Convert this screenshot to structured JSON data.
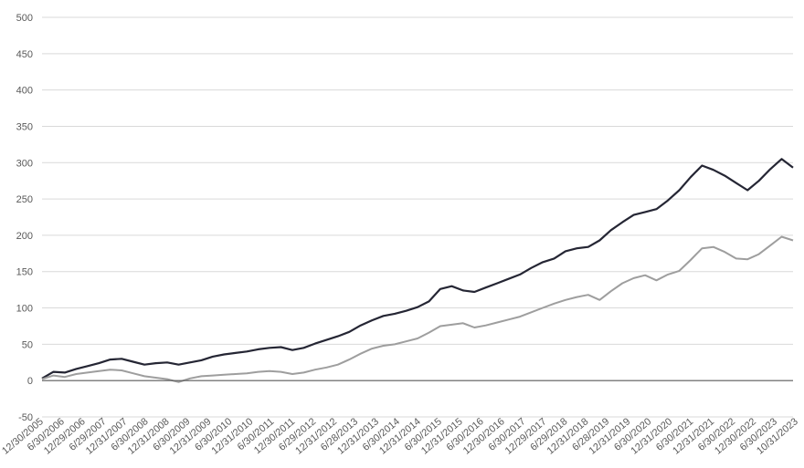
{
  "chart_data": {
    "type": "line",
    "title": "",
    "xlabel": "",
    "ylabel": "",
    "ylim": [
      -50,
      500
    ],
    "yticks": [
      "-50",
      "0",
      "50",
      "100",
      "150",
      "200",
      "250",
      "300",
      "350",
      "400",
      "450",
      "500"
    ],
    "grid": true,
    "legend": "none",
    "x_tick_labels": [
      "12/30/2005",
      "6/30/2006",
      "12/29/2006",
      "6/29/2007",
      "12/31/2007",
      "6/30/2008",
      "12/31/2008",
      "6/30/2009",
      "12/31/2009",
      "6/30/2010",
      "12/31/2010",
      "6/30/2011",
      "12/30/2011",
      "6/29/2012",
      "12/31/2012",
      "6/28/2013",
      "12/31/2013",
      "6/30/2014",
      "12/31/2014",
      "6/30/2015",
      "12/31/2015",
      "6/30/2016",
      "12/30/2016",
      "6/30/2017",
      "12/29/2017",
      "6/29/2018",
      "12/31/2018",
      "6/28/2019",
      "12/31/2019",
      "6/30/2020",
      "12/31/2020",
      "6/30/2021",
      "12/31/2021",
      "6/30/2022",
      "12/30/2022",
      "6/30/2023",
      "10/31/2023"
    ],
    "series": [
      {
        "color": "#252634",
        "values": [
          3,
          12,
          11,
          16,
          20,
          24,
          29,
          30,
          26,
          22,
          24,
          25,
          22,
          25,
          28,
          33,
          36,
          38,
          40,
          43,
          45,
          46,
          42,
          45,
          51,
          56,
          61,
          67,
          76,
          83,
          89,
          92,
          96,
          101,
          109,
          126,
          130,
          124,
          122,
          128,
          134,
          140,
          146,
          155,
          163,
          168,
          178,
          182,
          184,
          193,
          207,
          218,
          228,
          232,
          236,
          248,
          262,
          280,
          296,
          290,
          282,
          272,
          262,
          275,
          291,
          305,
          293
        ]
      },
      {
        "color": "#9e9e9e",
        "values": [
          2,
          7,
          5,
          9,
          11,
          13,
          15,
          14,
          10,
          6,
          4,
          2,
          -2,
          3,
          6,
          7,
          8,
          9,
          10,
          12,
          13,
          12,
          9,
          11,
          15,
          18,
          22,
          29,
          37,
          44,
          48,
          50,
          54,
          58,
          66,
          75,
          77,
          79,
          73,
          76,
          80,
          84,
          88,
          94,
          100,
          106,
          111,
          115,
          118,
          111,
          123,
          134,
          141,
          145,
          138,
          146,
          151,
          166,
          182,
          184,
          177,
          168,
          167,
          174,
          186,
          198,
          193
        ]
      }
    ]
  }
}
